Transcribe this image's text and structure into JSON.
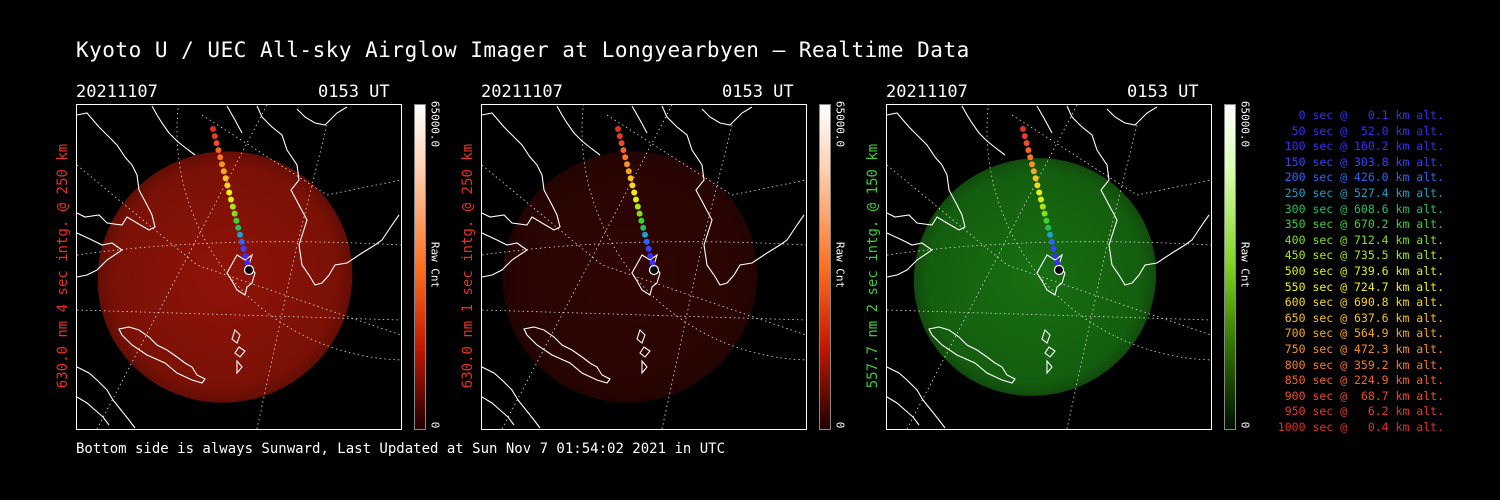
{
  "title": "Kyoto U / UEC All-sky Airglow Imager at Longyearbyen — Realtime Data",
  "panels": [
    {
      "date": "20211107",
      "time": "0153 UT",
      "ylabel": "630.0 nm 4 sec intg. @ 250 km",
      "label_color": "#e8321e",
      "cbar_max": "65000.0",
      "cbar_min": "0",
      "cbar_unit": "Raw Cnt",
      "glow_color": "#c01a0a",
      "glow_opacity": 0.75
    },
    {
      "date": "20211107",
      "time": "0153 UT",
      "ylabel": "630.0 nm 1 sec intg. @ 250 km",
      "label_color": "#e8321e",
      "cbar_max": "65000.0",
      "cbar_min": "0",
      "cbar_unit": "Raw Cnt",
      "glow_color": "#6a0c06",
      "glow_opacity": 0.45
    },
    {
      "date": "20211107",
      "time": "0153 UT",
      "ylabel": "557.7 nm 2 sec intg. @ 150 km",
      "label_color": "#3ccc32",
      "cbar_max": "65000.0",
      "cbar_min": "0",
      "cbar_unit": "Raw Cnt",
      "glow_color": "#1e8a16",
      "glow_opacity": 0.8
    }
  ],
  "legend": [
    {
      "text": "0 sec @   0.1 km alt.",
      "color": "#3a2cff"
    },
    {
      "text": "50 sec @  52.0 km alt.",
      "color": "#3a2cff"
    },
    {
      "text": "100 sec @ 160.2 km alt.",
      "color": "#3a2cff"
    },
    {
      "text": "150 sec @ 303.8 km alt.",
      "color": "#3a40ff"
    },
    {
      "text": "200 sec @ 426.0 km alt.",
      "color": "#2a66ff"
    },
    {
      "text": "250 sec @ 527.4 km alt.",
      "color": "#20a0c8"
    },
    {
      "text": "300 sec @ 608.6 km alt.",
      "color": "#20c060"
    },
    {
      "text": "350 sec @ 670.2 km alt.",
      "color": "#40d030"
    },
    {
      "text": "400 sec @ 712.4 km alt.",
      "color": "#80e020"
    },
    {
      "text": "450 sec @ 735.5 km alt.",
      "color": "#a8e818"
    },
    {
      "text": "500 sec @ 739.6 km alt.",
      "color": "#d8f010"
    },
    {
      "text": "550 sec @ 724.7 km alt.",
      "color": "#f0f010"
    },
    {
      "text": "600 sec @ 690.8 km alt.",
      "color": "#f8d818"
    },
    {
      "text": "650 sec @ 637.6 km alt.",
      "color": "#f8c020"
    },
    {
      "text": "700 sec @ 564.9 km alt.",
      "color": "#f8a820"
    },
    {
      "text": "750 sec @ 472.3 km alt.",
      "color": "#f89028"
    },
    {
      "text": "800 sec @ 359.2 km alt.",
      "color": "#f87828"
    },
    {
      "text": "850 sec @ 224.9 km alt.",
      "color": "#f86028"
    },
    {
      "text": "900 sec @  68.7 km alt.",
      "color": "#f04a28"
    },
    {
      "text": "950 sec @   6.2 km alt.",
      "color": "#e83a28"
    },
    {
      "text": "1000 sec @   0.4 km alt.",
      "color": "#e03020"
    }
  ],
  "footer": "Bottom side is always Sunward, Last Updated at Sun Nov  7 01:54:02 2021 in UTC"
}
